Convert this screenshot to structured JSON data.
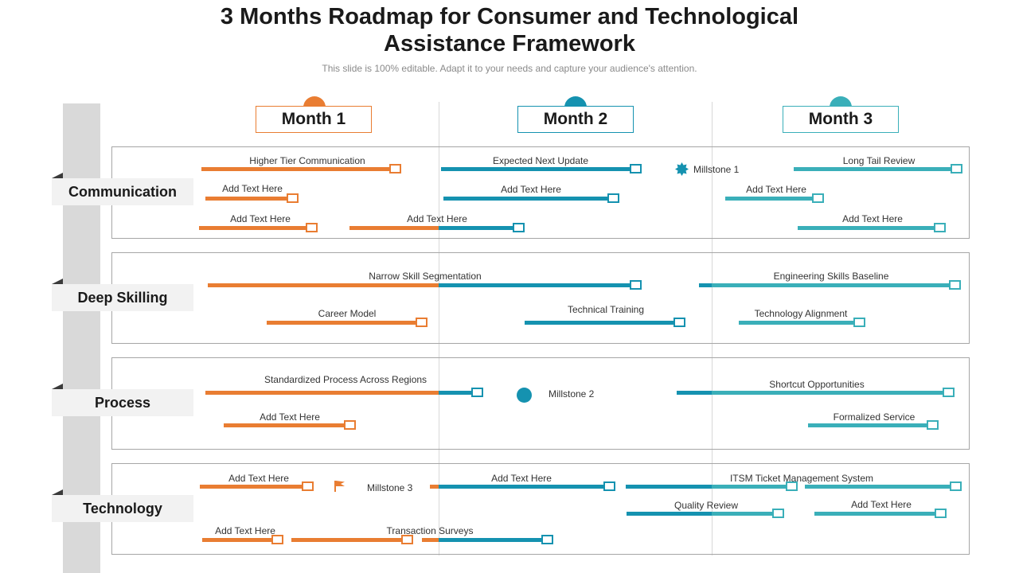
{
  "header": {
    "title_line1": "3 Months Roadmap for Consumer and Technological",
    "title_line2": "Assistance Framework",
    "subtitle": "This slide is 100% editable. Adapt it to your needs and capture your audience's attention."
  },
  "colors": {
    "month1": "#e97d32",
    "month2": "#1592b0",
    "month3": "#3aafb9"
  },
  "months": [
    "Month 1",
    "Month 2",
    "Month 3"
  ],
  "categories": [
    "Communication",
    "Deep Skilling",
    "Process",
    "Technology"
  ],
  "milestones": {
    "m1": {
      "label": "Millstone 1",
      "icon": "star-badge-icon"
    },
    "m2": {
      "label": "Millstone 2",
      "icon": "circle-icon"
    },
    "m3": {
      "label": "Millstone 3",
      "icon": "flag-icon"
    }
  },
  "tasks": {
    "communication": [
      "Higher Tier Communication",
      "Expected Next Update",
      "Long Tail Review",
      "Add Text Here",
      "Add Text Here",
      "Add Text Here",
      "Add Text Here",
      "Add Text Here",
      "Add Text Here"
    ],
    "deep_skilling": [
      "Narrow Skill Segmentation",
      "Engineering Skills Baseline",
      "Career Model",
      "Technical Training",
      "Technology Alignment"
    ],
    "process": [
      "Standardized Process Across Regions",
      "Shortcut Opportunities",
      "Add Text Here",
      "Formalized Service"
    ],
    "technology": [
      "Add Text Here",
      "Add Text Here",
      "ITSM  Ticket Management System",
      "Quality Review",
      "Add Text Here",
      "Add Text Here",
      "Transaction Surveys"
    ]
  }
}
